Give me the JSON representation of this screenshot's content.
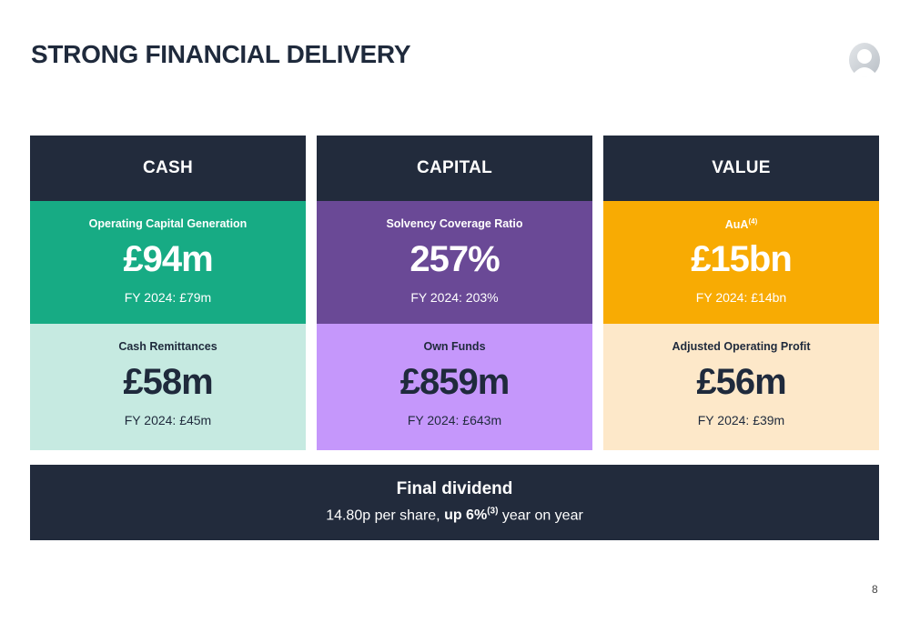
{
  "title": "STRONG FINANCIAL DELIVERY",
  "colors": {
    "navy": "#222b3c",
    "green": "#17ab84",
    "green_light": "#c6eae1",
    "purple": "#6a4996",
    "purple_light": "#c597fb",
    "amber": "#f8ab03",
    "amber_light": "#fde8c9"
  },
  "columns": [
    {
      "header": "CASH",
      "top": {
        "label": "Operating Capital Generation",
        "value": "£94m",
        "prior": "FY 2024: £79m"
      },
      "bottom": {
        "label": "Cash Remittances",
        "value": "£58m",
        "prior": "FY 2024: £45m"
      }
    },
    {
      "header": "CAPITAL",
      "top": {
        "label": "Solvency Coverage Ratio",
        "value": "257%",
        "prior": "FY 2024: 203%"
      },
      "bottom": {
        "label": "Own Funds",
        "value": "£859m",
        "prior": "FY 2024: £643m"
      }
    },
    {
      "header": "VALUE",
      "top": {
        "label": "AuA",
        "footnote": "(4)",
        "value": "£15bn",
        "prior": "FY 2024: £14bn"
      },
      "bottom": {
        "label": "Adjusted Operating Profit",
        "value": "£56m",
        "prior": "FY 2024: £39m"
      }
    }
  ],
  "dividend": {
    "title": "Final dividend",
    "text_before": "14.80p per share, ",
    "highlight": "up 6%",
    "footnote": "(3)",
    "text_after": " year on year"
  },
  "page_number": "8",
  "logo_icon": "person-silhouette-icon"
}
